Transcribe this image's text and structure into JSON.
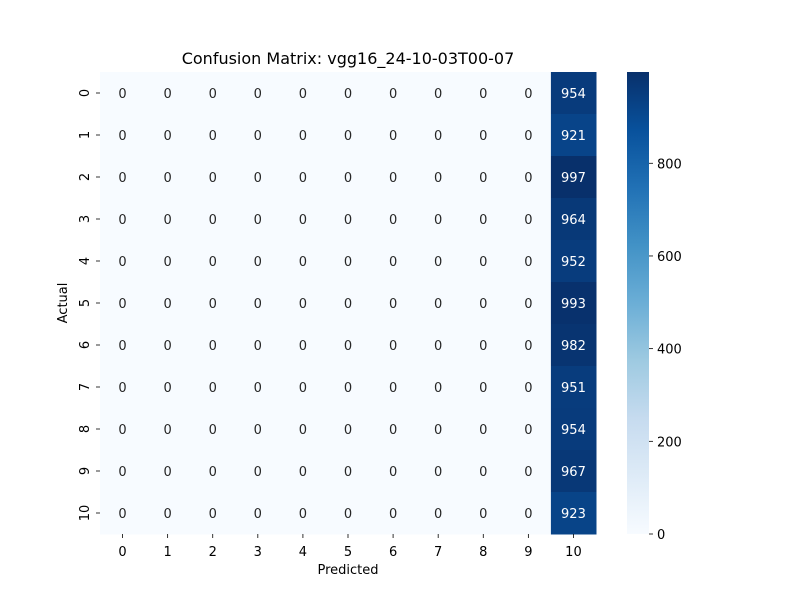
{
  "chart_data": {
    "type": "heatmap",
    "title": "Confusion Matrix: vgg16_24-10-03T00-07",
    "xlabel": "Predicted",
    "ylabel": "Actual",
    "x_categories": [
      "0",
      "1",
      "2",
      "3",
      "4",
      "5",
      "6",
      "7",
      "8",
      "9",
      "10"
    ],
    "y_categories": [
      "0",
      "1",
      "2",
      "3",
      "4",
      "5",
      "6",
      "7",
      "8",
      "9",
      "10"
    ],
    "values": [
      [
        0,
        0,
        0,
        0,
        0,
        0,
        0,
        0,
        0,
        0,
        954
      ],
      [
        0,
        0,
        0,
        0,
        0,
        0,
        0,
        0,
        0,
        0,
        921
      ],
      [
        0,
        0,
        0,
        0,
        0,
        0,
        0,
        0,
        0,
        0,
        997
      ],
      [
        0,
        0,
        0,
        0,
        0,
        0,
        0,
        0,
        0,
        0,
        964
      ],
      [
        0,
        0,
        0,
        0,
        0,
        0,
        0,
        0,
        0,
        0,
        952
      ],
      [
        0,
        0,
        0,
        0,
        0,
        0,
        0,
        0,
        0,
        0,
        993
      ],
      [
        0,
        0,
        0,
        0,
        0,
        0,
        0,
        0,
        0,
        0,
        982
      ],
      [
        0,
        0,
        0,
        0,
        0,
        0,
        0,
        0,
        0,
        0,
        951
      ],
      [
        0,
        0,
        0,
        0,
        0,
        0,
        0,
        0,
        0,
        0,
        954
      ],
      [
        0,
        0,
        0,
        0,
        0,
        0,
        0,
        0,
        0,
        0,
        967
      ],
      [
        0,
        0,
        0,
        0,
        0,
        0,
        0,
        0,
        0,
        0,
        923
      ]
    ],
    "colormap": "Blues",
    "color_range": [
      0,
      997
    ],
    "colorbar_ticks": [
      0,
      200,
      400,
      600,
      800
    ],
    "colorbar_tick_labels": [
      "0",
      "200",
      "400",
      "600",
      "800"
    ],
    "annotations": true,
    "annotation_dark_color": "#262626",
    "annotation_light_color": "#ffffff",
    "colors": {
      "low": "#f7fbff",
      "high": "#08306b"
    }
  }
}
